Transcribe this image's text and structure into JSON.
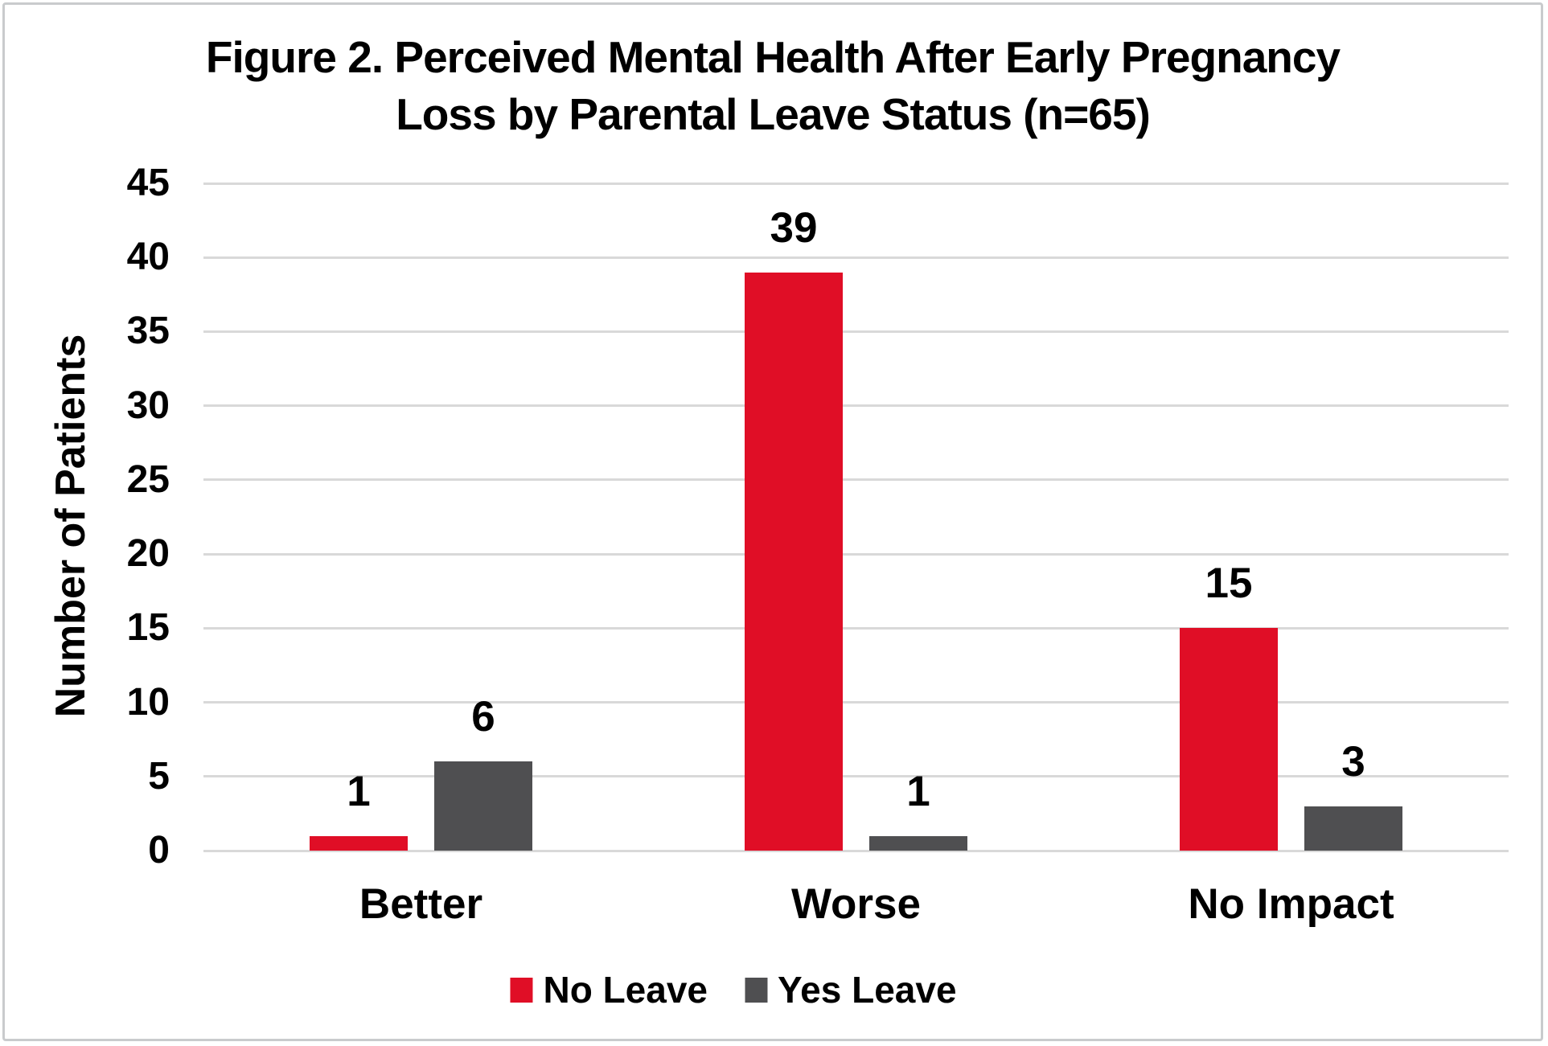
{
  "header": {
    "line1": "Figure 2. Perceived Mental Health After Early Pregnancy",
    "line2": "Loss by Parental Leave Status (n=65)"
  },
  "chart_data": {
    "type": "bar",
    "title": "Figure 2. Perceived Mental Health After Early Pregnancy Loss by Parental Leave Status (n=65)",
    "categories": [
      "Better",
      "Worse",
      "No Impact"
    ],
    "series": [
      {
        "name": "No Leave",
        "color": "#E00E26",
        "values": [
          1,
          39,
          15
        ]
      },
      {
        "name": "Yes Leave",
        "color": "#4F4F51",
        "values": [
          6,
          1,
          3
        ]
      }
    ],
    "xlabel": "",
    "ylabel": "Number of Patients",
    "ylim": [
      0,
      45
    ],
    "ytick_step": 5,
    "yticks": [
      0,
      5,
      10,
      15,
      20,
      25,
      30,
      35,
      40,
      45
    ],
    "grid": true,
    "gridline_color": "#D9D9D9",
    "axis_line_color": "#D9D9D9",
    "legend_position": "bottom",
    "data_labels": true,
    "text_color": "#000000",
    "background_color": "#FFFFFF"
  }
}
